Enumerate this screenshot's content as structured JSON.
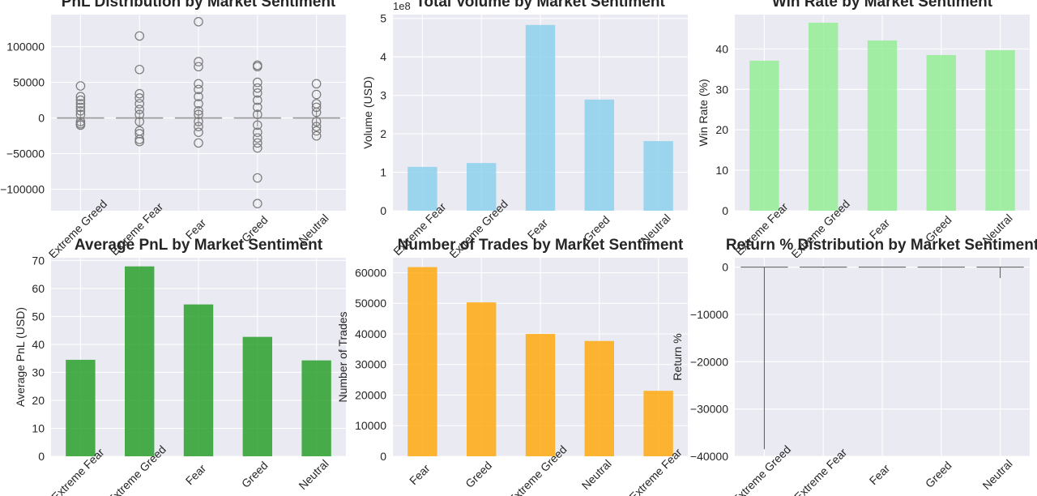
{
  "chart_data": [
    {
      "id": "pnl_box",
      "type": "box",
      "title": "PnL Distribution by Market Sentiment",
      "xlabel": "",
      "ylabel": "",
      "categories": [
        "Extreme Greed",
        "Extreme Fear",
        "Fear",
        "Greed",
        "Neutral"
      ],
      "ylim": [
        -130000,
        145000
      ],
      "yticks": [
        -100000,
        -50000,
        0,
        50000,
        100000
      ],
      "ytick_labels": [
        "−100000",
        "−50000",
        "0",
        "50000",
        "100000"
      ],
      "box_color": "#999999",
      "outliers": [
        [
          45000,
          30000,
          25000,
          20000,
          15000,
          10000,
          5000,
          -5000,
          -8000,
          -10000
        ],
        [
          115000,
          68000,
          34000,
          28000,
          20000,
          12000,
          5000,
          -5000,
          -18000,
          -22000,
          -30000,
          -33000
        ],
        [
          135000,
          79000,
          72000,
          48000,
          40000,
          30000,
          20000,
          10000,
          5000,
          -5000,
          -12000,
          -20000,
          -35000
        ],
        [
          74000,
          72000,
          50000,
          42000,
          35000,
          25000,
          15000,
          5000,
          -10000,
          -20000,
          -28000,
          -35000,
          -42000,
          -84000,
          -120000
        ],
        [
          48000,
          33000,
          20000,
          15000,
          8000,
          -5000,
          -12000,
          -18000,
          -25000
        ]
      ]
    },
    {
      "id": "volume_bar",
      "type": "bar",
      "title": "Total Volume by Market Sentiment",
      "xlabel": "",
      "ylabel": "Volume (USD)",
      "offset_label": "1e8",
      "categories": [
        "Extreme Fear",
        "Extreme Greed",
        "Fear",
        "Greed",
        "Neutral"
      ],
      "values": [
        1.14,
        1.24,
        4.83,
        2.89,
        1.81
      ],
      "ylim": [
        0,
        5.1
      ],
      "yticks": [
        0,
        1,
        2,
        3,
        4,
        5
      ],
      "ytick_labels": [
        "0",
        "1",
        "2",
        "3",
        "4",
        "5"
      ],
      "color": "#87ceeb"
    },
    {
      "id": "winrate_bar",
      "type": "bar",
      "title": "Win Rate by Market Sentiment",
      "xlabel": "",
      "ylabel": "Win Rate (%)",
      "categories": [
        "Extreme Fear",
        "Extreme Greed",
        "Fear",
        "Greed",
        "Neutral"
      ],
      "values": [
        37.1,
        46.5,
        42.1,
        38.5,
        39.7
      ],
      "ylim": [
        0,
        48.5
      ],
      "yticks": [
        0,
        10,
        20,
        30,
        40
      ],
      "ytick_labels": [
        "0",
        "10",
        "20",
        "30",
        "40"
      ],
      "color": "#90ee90"
    },
    {
      "id": "avgpnl_bar",
      "type": "bar",
      "title": "Average PnL by Market Sentiment",
      "xlabel": "",
      "ylabel": "Average PnL (USD)",
      "categories": [
        "Extreme Fear",
        "Extreme Greed",
        "Fear",
        "Greed",
        "Neutral"
      ],
      "values": [
        34.5,
        67.9,
        54.3,
        42.7,
        34.3
      ],
      "ylim": [
        0,
        71
      ],
      "yticks": [
        0,
        10,
        20,
        30,
        40,
        50,
        60,
        70
      ],
      "ytick_labels": [
        "0",
        "10",
        "20",
        "30",
        "40",
        "50",
        "60",
        "70"
      ],
      "color": "#2ca02c"
    },
    {
      "id": "trades_bar",
      "type": "bar",
      "title": "Number of Trades by Market Sentiment",
      "xlabel": "",
      "ylabel": "Number of Trades",
      "categories": [
        "Fear",
        "Greed",
        "Extreme Greed",
        "Neutral",
        "Extreme Fear"
      ],
      "values": [
        61837,
        50303,
        39992,
        37686,
        21400
      ],
      "ylim": [
        0,
        64900
      ],
      "yticks": [
        0,
        10000,
        20000,
        30000,
        40000,
        50000,
        60000
      ],
      "ytick_labels": [
        "0",
        "10000",
        "20000",
        "30000",
        "40000",
        "50000",
        "60000"
      ],
      "color": "#ffa500"
    },
    {
      "id": "return_box",
      "type": "box",
      "title": "Return % Distribution by Market Sentiment",
      "xlabel": "",
      "ylabel": "Return %",
      "categories": [
        "Extreme Greed",
        "Extreme Fear",
        "Fear",
        "Greed",
        "Neutral"
      ],
      "ylim": [
        -40000,
        2000
      ],
      "yticks": [
        -40000,
        -30000,
        -20000,
        -10000,
        0
      ],
      "ytick_labels": [
        "−40000",
        "−30000",
        "−20000",
        "−10000",
        "0"
      ],
      "box_color": "#999999",
      "whiskers": [
        [
          -38500,
          0
        ],
        [
          -150,
          100
        ],
        [
          -50,
          50
        ],
        [
          -60,
          60
        ],
        [
          -2300,
          0
        ]
      ]
    }
  ]
}
